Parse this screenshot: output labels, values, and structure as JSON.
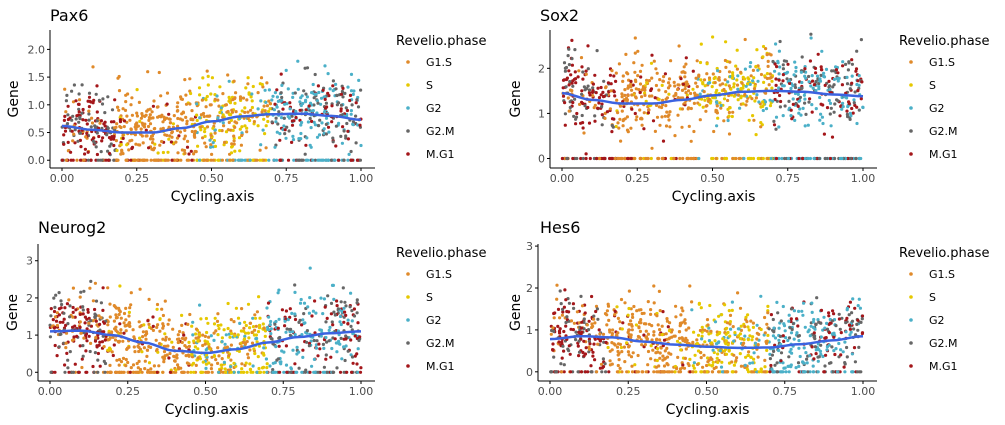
{
  "colors": {
    "G1.S": "#e08a2a",
    "S": "#e6c800",
    "G2": "#4bb0c8",
    "G2.M": "#666666",
    "M.G1": "#a4161a",
    "smooth": "#3b63e0",
    "axis": "#000000",
    "tick_text": "#4d4d4d"
  },
  "chart_data": [
    {
      "type": "scatter",
      "title": "Pax6",
      "xlabel": "Cycling.axis",
      "ylabel": "Gene",
      "xlim": [
        0,
        1
      ],
      "ylim": [
        -0.05,
        2.35
      ],
      "x_ticks": [
        0,
        0.25,
        0.5,
        0.75,
        1
      ],
      "x_tick_labels": [
        "0.00",
        "0.25",
        "0.50",
        "0.75",
        "1.00"
      ],
      "y_ticks": [
        0,
        0.5,
        1,
        1.5,
        2
      ],
      "y_tick_labels": [
        "0.0",
        "0.5",
        "1.0",
        "1.5",
        "2.0"
      ],
      "legend_title": "Revelio.phase",
      "legend_entries": [
        "G1.S",
        "S",
        "G2",
        "G2.M",
        "M.G1"
      ],
      "legend_position": "right",
      "grid": false,
      "smooth_x": [
        0,
        0.1,
        0.2,
        0.3,
        0.4,
        0.5,
        0.6,
        0.7,
        0.8,
        0.9,
        1.0
      ],
      "smooth_y": [
        0.62,
        0.55,
        0.5,
        0.5,
        0.58,
        0.7,
        0.79,
        0.83,
        0.84,
        0.8,
        0.73
      ]
    },
    {
      "type": "scatter",
      "title": "Sox2",
      "xlabel": "Cycling.axis",
      "ylabel": "Gene",
      "xlim": [
        0,
        1
      ],
      "ylim": [
        -0.1,
        2.85
      ],
      "x_ticks": [
        0,
        0.25,
        0.5,
        0.75,
        1
      ],
      "x_tick_labels": [
        "0.00",
        "0.25",
        "0.50",
        "0.75",
        "1.00"
      ],
      "y_ticks": [
        0,
        1,
        2
      ],
      "y_tick_labels": [
        "0",
        "1",
        "2"
      ],
      "legend_title": "Revelio.phase",
      "legend_entries": [
        "G1.S",
        "S",
        "G2",
        "G2.M",
        "M.G1"
      ],
      "legend_position": "right",
      "grid": false,
      "smooth_x": [
        0,
        0.1,
        0.2,
        0.3,
        0.4,
        0.5,
        0.6,
        0.7,
        0.8,
        0.9,
        1.0
      ],
      "smooth_y": [
        1.45,
        1.3,
        1.22,
        1.22,
        1.3,
        1.4,
        1.48,
        1.5,
        1.48,
        1.42,
        1.38
      ]
    },
    {
      "type": "scatter",
      "title": "Neurog2",
      "xlabel": "Cycling.axis",
      "ylabel": "Gene",
      "xlim": [
        0,
        1
      ],
      "ylim": [
        -0.1,
        3.45
      ],
      "x_ticks": [
        0,
        0.25,
        0.5,
        0.75,
        1
      ],
      "x_tick_labels": [
        "0.00",
        "0.25",
        "0.50",
        "0.75",
        "1.00"
      ],
      "y_ticks": [
        0,
        1,
        2,
        3
      ],
      "y_tick_labels": [
        "0",
        "1",
        "2",
        "3"
      ],
      "legend_title": "Revelio.phase",
      "legend_entries": [
        "G1.S",
        "S",
        "G2",
        "G2.M",
        "M.G1"
      ],
      "legend_position": "right",
      "grid": false,
      "smooth_x": [
        0,
        0.1,
        0.2,
        0.3,
        0.4,
        0.5,
        0.6,
        0.7,
        0.8,
        0.9,
        1.0
      ],
      "smooth_y": [
        1.1,
        1.12,
        1.0,
        0.8,
        0.58,
        0.52,
        0.62,
        0.8,
        0.95,
        1.05,
        1.1
      ]
    },
    {
      "type": "scatter",
      "title": "Hes6",
      "xlabel": "Cycling.axis",
      "ylabel": "Gene",
      "xlim": [
        0,
        1
      ],
      "ylim": [
        -0.1,
        3.05
      ],
      "x_ticks": [
        0,
        0.25,
        0.5,
        0.75,
        1
      ],
      "x_tick_labels": [
        "0.00",
        "0.25",
        "0.50",
        "0.75",
        "1.00"
      ],
      "y_ticks": [
        0,
        1,
        2,
        3
      ],
      "y_tick_labels": [
        "0",
        "1",
        "2",
        "3"
      ],
      "legend_title": "Revelio.phase",
      "legend_entries": [
        "G1.S",
        "S",
        "G2",
        "G2.M",
        "M.G1"
      ],
      "legend_position": "right",
      "grid": false,
      "smooth_x": [
        0,
        0.1,
        0.2,
        0.3,
        0.4,
        0.5,
        0.6,
        0.7,
        0.8,
        0.9,
        1.0
      ],
      "smooth_y": [
        0.78,
        0.85,
        0.82,
        0.72,
        0.65,
        0.6,
        0.57,
        0.58,
        0.66,
        0.75,
        0.85
      ]
    }
  ]
}
